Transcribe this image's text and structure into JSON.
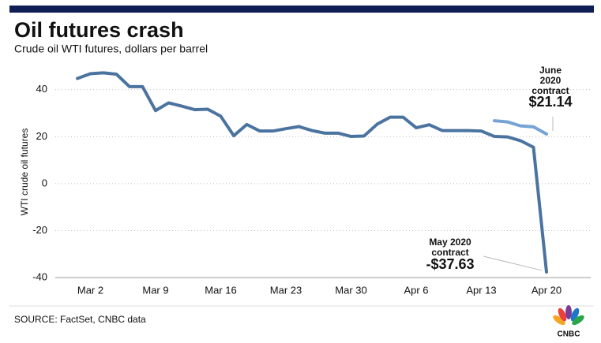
{
  "chart_data": {
    "type": "line",
    "title": "Oil futures crash",
    "subtitle": "Crude oil WTI futures, dollars per barrel",
    "y_label": "WTI crude oil futures",
    "categories": [
      null,
      "Mar 2",
      null,
      null,
      null,
      null,
      "Mar 9",
      null,
      null,
      null,
      null,
      "Mar 16",
      null,
      null,
      null,
      null,
      "Mar 23",
      null,
      null,
      null,
      null,
      "Mar 30",
      null,
      null,
      null,
      null,
      "Apr 6",
      null,
      null,
      null,
      null,
      "Apr 13",
      null,
      null,
      null,
      null,
      "Apr 20"
    ],
    "series": [
      {
        "color": "#4b73a0",
        "label_lines": [
          "May 2020",
          "contract"
        ],
        "values": [
          44.8,
          46.8,
          47.2,
          46.6,
          41.3,
          41.3,
          31.1,
          34.4,
          33.0,
          31.5,
          31.7,
          28.7,
          20.4,
          25.2,
          22.4,
          22.4,
          23.4,
          24.3,
          22.6,
          21.5,
          21.5,
          20.1,
          20.3,
          25.3,
          28.3,
          28.3,
          23.8,
          25.1,
          22.6,
          22.6,
          22.6,
          22.4,
          20.1,
          19.9,
          18.3,
          15.5,
          -37.63
        ],
        "value_labels": [
          null,
          null,
          null,
          null,
          null,
          null,
          null,
          null,
          null,
          null,
          null,
          null,
          null,
          null,
          null,
          null,
          null,
          null,
          null,
          null,
          null,
          null,
          null,
          null,
          null,
          null,
          null,
          null,
          null,
          null,
          null,
          null,
          null,
          null,
          null,
          null,
          "-$37.63"
        ]
      },
      {
        "color": "#74a3d4",
        "label_lines": [
          "June",
          "2020",
          "contract"
        ],
        "values": [
          null,
          null,
          null,
          null,
          null,
          null,
          null,
          null,
          null,
          null,
          null,
          null,
          null,
          null,
          null,
          null,
          null,
          null,
          null,
          null,
          null,
          null,
          null,
          null,
          null,
          null,
          null,
          null,
          null,
          null,
          null,
          null,
          26.8,
          26.3,
          24.6,
          24.2,
          21.14
        ],
        "value_labels": [
          null,
          null,
          null,
          null,
          null,
          null,
          null,
          null,
          null,
          null,
          null,
          null,
          null,
          null,
          null,
          null,
          null,
          null,
          null,
          null,
          null,
          null,
          null,
          null,
          null,
          null,
          null,
          null,
          null,
          null,
          null,
          null,
          null,
          null,
          null,
          null,
          "$21.14"
        ]
      }
    ],
    "ylim": [
      -40,
      50
    ],
    "yticks": [
      -40,
      -20,
      0,
      20,
      40
    ],
    "grid": true,
    "source": "SOURCE: FactSet, CNBC data",
    "logo": "CNBC"
  }
}
